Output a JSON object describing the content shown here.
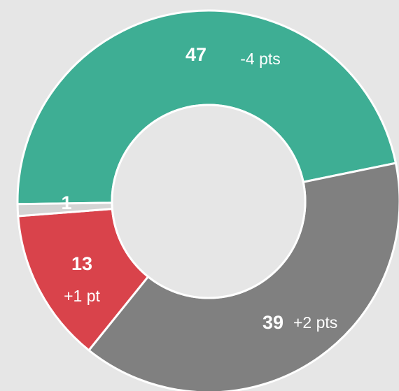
{
  "chart_data": {
    "type": "donut",
    "values": [
      47,
      39,
      13,
      1
    ],
    "change_labels": [
      "-4 pts",
      "+2 pts",
      "+1 pt",
      null
    ],
    "colors": [
      "#3eae94",
      "#808080",
      "#d9434b",
      "#d4d4d4"
    ]
  }
}
